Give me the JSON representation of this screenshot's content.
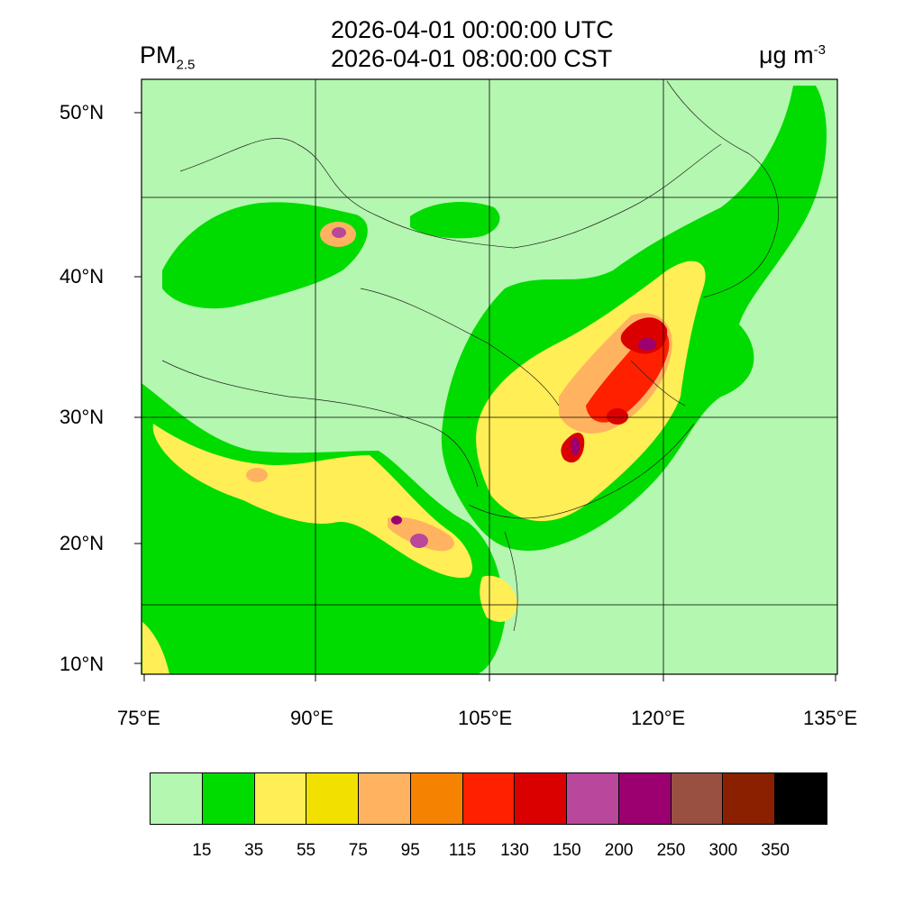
{
  "header": {
    "title_line1": "2026-04-01 00:00:00 UTC",
    "title_line2": "2026-04-01 08:00:00 CST",
    "variable_main": "PM",
    "variable_sub": "2.5",
    "units_main": "μg m",
    "units_sup": "-3"
  },
  "map": {
    "projection": "lat-lon region over China",
    "lon_ticks": [
      "75°E",
      "90°E",
      "105°E",
      "120°E",
      "135°E"
    ],
    "lat_ticks": [
      "50°N",
      "40°N",
      "30°N",
      "20°N",
      "10°N"
    ],
    "background_color": "#b4f7b0",
    "land_color": "#00dc00"
  },
  "colorbar": {
    "colors": [
      "#b4f7b0",
      "#00dc00",
      "#ffee55",
      "#f2e000",
      "#ffb360",
      "#f58200",
      "#ff2000",
      "#db0000",
      "#b9479c",
      "#9c0070",
      "#9a5040",
      "#8a2000",
      "#000000"
    ],
    "labels": [
      "15",
      "35",
      "55",
      "75",
      "95",
      "115",
      "130",
      "150",
      "200",
      "250",
      "300",
      "350"
    ]
  }
}
